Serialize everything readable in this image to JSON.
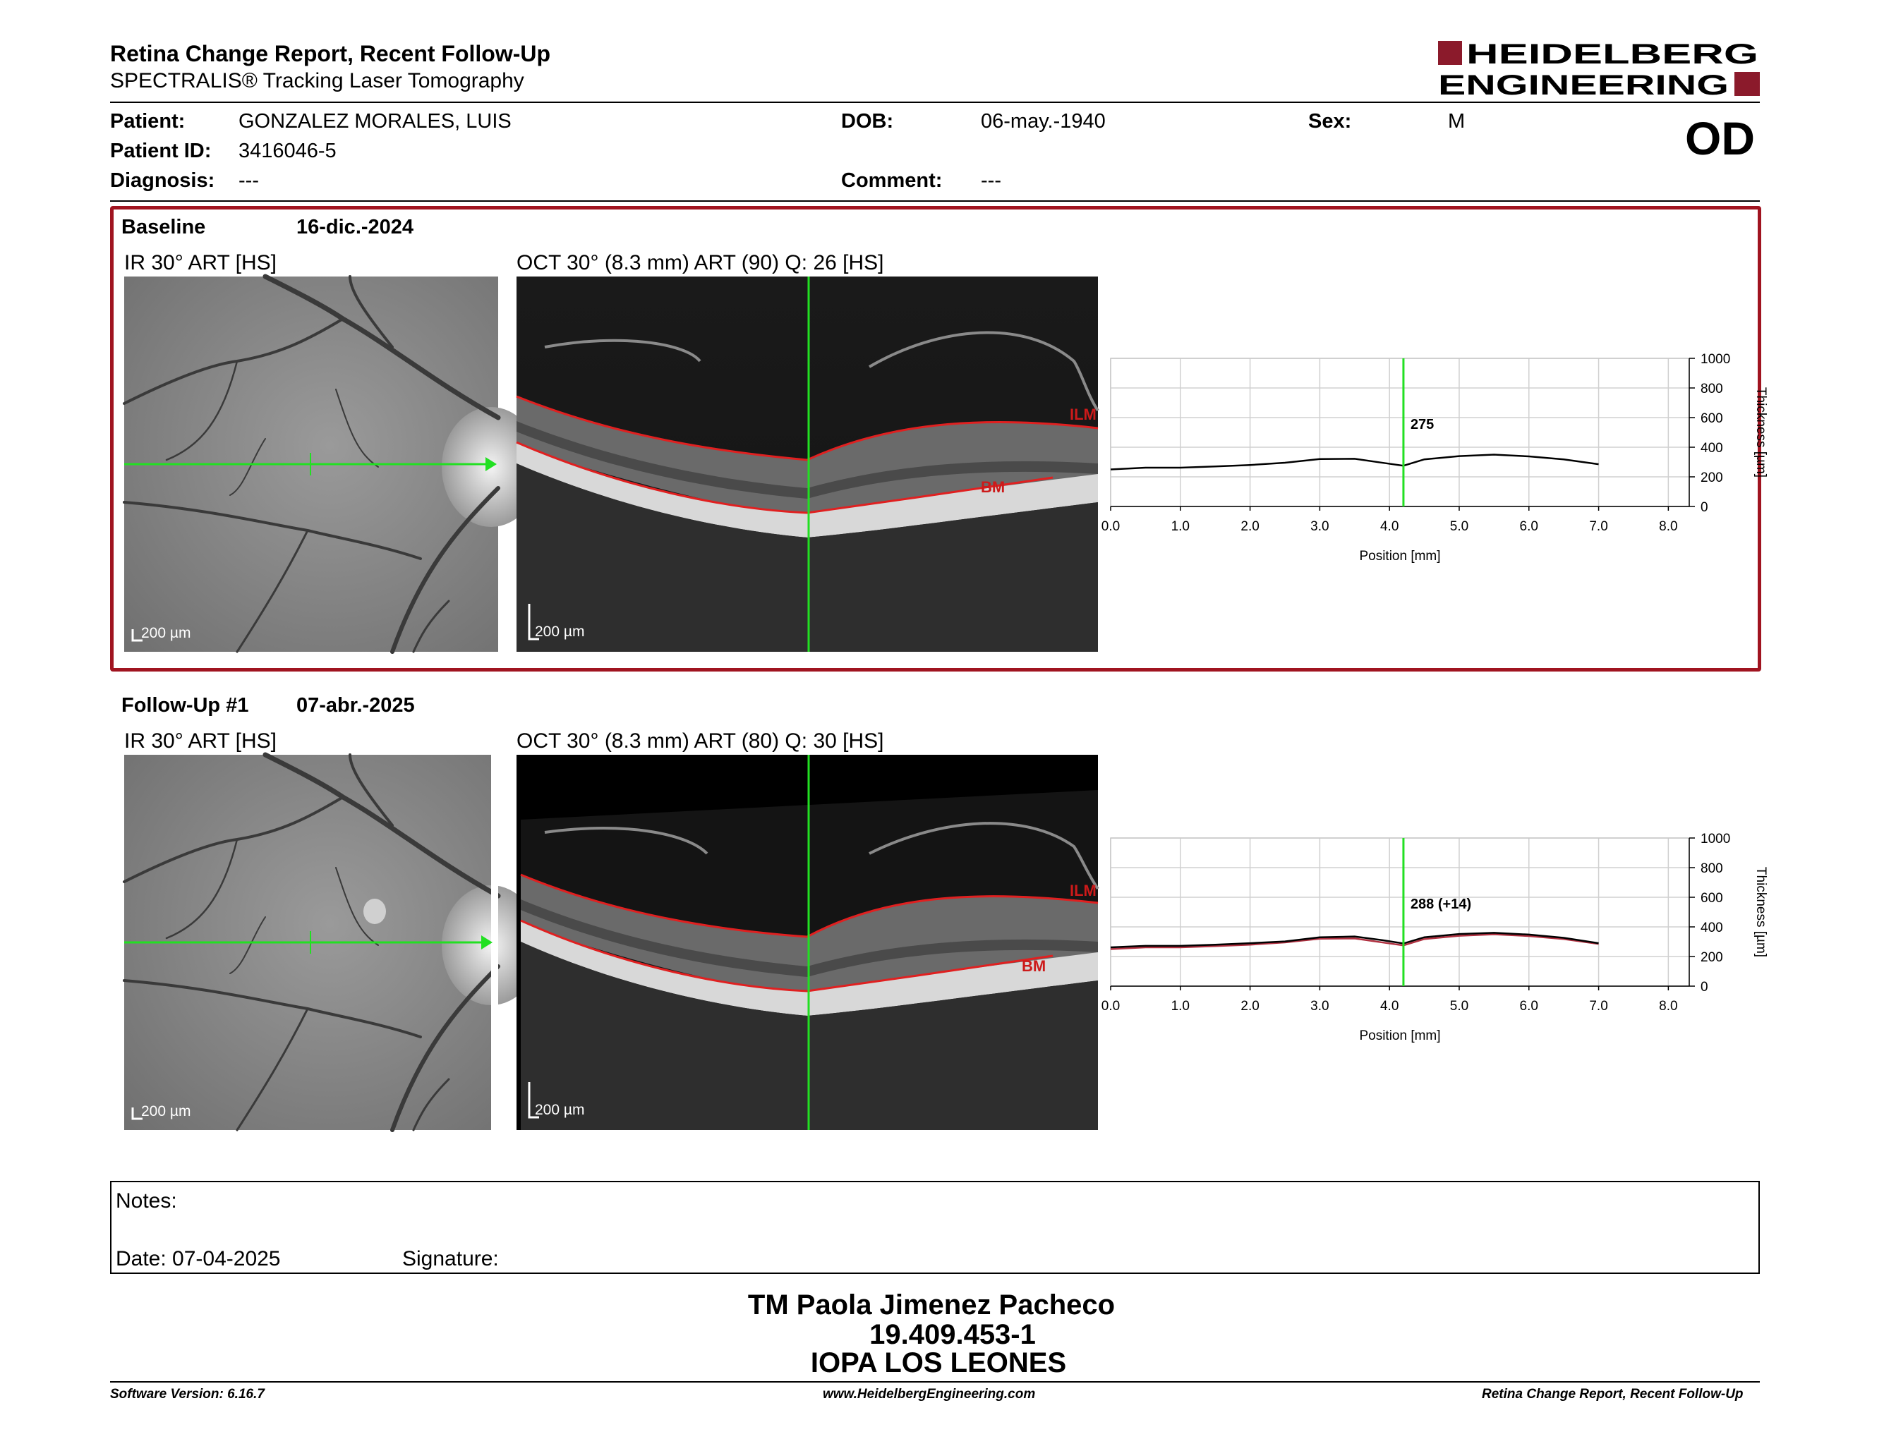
{
  "header": {
    "title": "Retina Change Report, Recent Follow-Up",
    "subtitle": "SPECTRALIS® Tracking Laser Tomography",
    "logo_line1": "HEIDELBERG",
    "logo_line2": "ENGINEERING",
    "brand_color": "#8b1a2b"
  },
  "patient": {
    "patient_label": "Patient:",
    "patient_value": "GONZALEZ MORALES, LUIS",
    "id_label": "Patient ID:",
    "id_value": "3416046-5",
    "diagnosis_label": "Diagnosis:",
    "diagnosis_value": "---",
    "dob_label": "DOB:",
    "dob_value": "06-may.-1940",
    "comment_label": "Comment:",
    "comment_value": "---",
    "sex_label": "Sex:",
    "sex_value": "M",
    "eye": "OD"
  },
  "baseline": {
    "label": "Baseline",
    "date": "16-dic.-2024",
    "ir_caption": "IR 30° ART [HS]",
    "oct_caption": "OCT 30° (8.3 mm) ART (90) Q: 26 [HS]",
    "scale": "200 µm",
    "ilm_label": "ILM",
    "bm_label": "BM",
    "box_color": "#a01420"
  },
  "followup": {
    "label": "Follow-Up #1",
    "date": "07-abr.-2025",
    "ir_caption": "IR 30° ART [HS]",
    "oct_caption": "OCT 30° (8.3 mm) ART (80) Q: 30 [HS]",
    "scale": "200 µm",
    "ilm_label": "ILM",
    "bm_label": "BM"
  },
  "chart_data": [
    {
      "type": "line",
      "xlabel": "Position [mm]",
      "ylabel": "Thickness [µm]",
      "xlim": [
        0,
        8.3
      ],
      "ylim": [
        0,
        1000
      ],
      "xticks": [
        "0.0",
        "1.0",
        "2.0",
        "3.0",
        "4.0",
        "5.0",
        "6.0",
        "7.0",
        "8.0"
      ],
      "yticks": [
        "0",
        "200",
        "400",
        "600",
        "800",
        "1000"
      ],
      "grid": true,
      "marker_x": 4.2,
      "marker_label": "275",
      "series": [
        {
          "x": [
            0,
            0.5,
            1,
            1.5,
            2,
            2.5,
            3,
            3.5,
            3.9,
            4.2,
            4.5,
            5,
            5.5,
            6,
            6.5,
            7
          ],
          "y": [
            250,
            262,
            262,
            270,
            280,
            295,
            320,
            322,
            295,
            275,
            318,
            340,
            350,
            338,
            318,
            285
          ],
          "color": "#000000"
        }
      ]
    },
    {
      "type": "line",
      "xlabel": "Position [mm]",
      "ylabel": "Thickness [µm]",
      "xlim": [
        0,
        8.3
      ],
      "ylim": [
        0,
        1000
      ],
      "xticks": [
        "0.0",
        "1.0",
        "2.0",
        "3.0",
        "4.0",
        "5.0",
        "6.0",
        "7.0",
        "8.0"
      ],
      "yticks": [
        "0",
        "200",
        "400",
        "600",
        "800",
        "1000"
      ],
      "grid": true,
      "marker_x": 4.2,
      "marker_label": "288 (+14)",
      "series": [
        {
          "x": [
            0,
            0.5,
            1,
            1.5,
            2,
            2.5,
            3,
            3.5,
            3.9,
            4.2,
            4.5,
            5,
            5.5,
            6,
            6.5,
            7
          ],
          "y": [
            262,
            272,
            272,
            280,
            290,
            302,
            330,
            335,
            310,
            288,
            330,
            352,
            360,
            348,
            326,
            290
          ],
          "color": "#000000"
        },
        {
          "x": [
            0,
            0.5,
            1,
            1.5,
            2,
            2.5,
            3,
            3.5,
            3.9,
            4.2,
            4.5,
            5,
            5.5,
            6,
            6.5,
            7
          ],
          "y": [
            250,
            262,
            262,
            270,
            280,
            295,
            320,
            322,
            295,
            275,
            318,
            340,
            350,
            338,
            318,
            285
          ],
          "color": "#b03040"
        }
      ]
    }
  ],
  "notes": {
    "notes_label": "Notes:",
    "date_label": "Date: 07-04-2025",
    "signature_label": "Signature:"
  },
  "signatory": {
    "name": "TM Paola Jimenez Pacheco",
    "id": "19.409.453-1",
    "org": "IOPA LOS LEONES"
  },
  "footer": {
    "software": "Software Version: 6.16.7",
    "website": "www.HeidelbergEngineering.com",
    "report": "Retina Change Report, Recent Follow-Up"
  }
}
